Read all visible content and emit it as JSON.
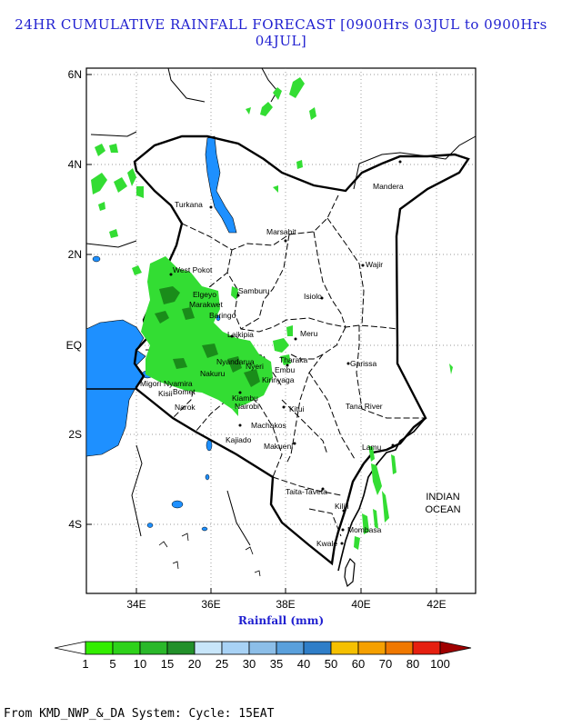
{
  "title": "24HR CUMULATIVE RAINFALL FORECAST [0900Hrs 03JUL to 0900Hrs 04JUL]",
  "x_axis_label": "Rainfall (mm)",
  "footer": "From KMD_NWP_&_DA System: Cycle: 15EAT",
  "lon_ticks": [
    "34E",
    "36E",
    "38E",
    "40E",
    "42E"
  ],
  "lat_ticks": [
    "6N",
    "4N",
    "2N",
    "EQ",
    "2S",
    "4S"
  ],
  "ocean_label": [
    "INDIAN",
    "OCEAN"
  ],
  "counties": [
    "Mandera",
    "Turkana",
    "Marsabit",
    "Wajir",
    "West Pokot",
    "Samburu",
    "Isiolo",
    "Elgeyo",
    "Marakwet",
    "Baringo",
    "Laikipia",
    "Meru",
    "Tharaka",
    "Embu",
    "Kirinyaga",
    "Garissa",
    "Nyandarua",
    "Nyeri",
    "Nyamira",
    "Bomet",
    "Kisii",
    "Migori",
    "Narok",
    "Nakuru",
    "Kiambu",
    "Nairobi",
    "Kitui",
    "Tana River",
    "Machakos",
    "Kajiado",
    "Makueni",
    "Lamu",
    "Taita-Taveta",
    "Kilifi",
    "Mombasa",
    "Kwale"
  ],
  "colors": {
    "lake": "#1e90ff",
    "title": "#1f1fd0",
    "rain_light": "#33dd33",
    "rain_dark": "#1a8c1a"
  },
  "legend": {
    "labels": [
      "1",
      "5",
      "10",
      "15",
      "20",
      "25",
      "30",
      "35",
      "40",
      "50",
      "60",
      "70",
      "80",
      "100"
    ],
    "colors": [
      "#33ee00",
      "#2ed21a",
      "#2ab82a",
      "#22902a",
      "#c8e6fa",
      "#a8d2f5",
      "#8cbee8",
      "#5aa0dc",
      "#2f7ec8",
      "#f5c000",
      "#f5a000",
      "#f07800",
      "#e62010",
      "#a00000"
    ]
  }
}
